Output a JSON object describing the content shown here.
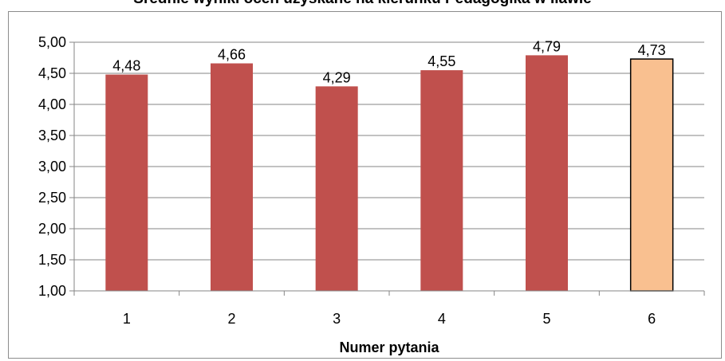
{
  "chart_data": {
    "type": "bar",
    "title": "Średnie wyniki ocen uzyskane na kierunku Pedagogika w Iławie",
    "xlabel": "Numer pytania",
    "ylabel": "",
    "categories": [
      "1",
      "2",
      "3",
      "4",
      "5",
      "6"
    ],
    "values": [
      4.48,
      4.66,
      4.29,
      4.55,
      4.79,
      4.73
    ],
    "data_labels": [
      "4,48",
      "4,66",
      "4,29",
      "4,55",
      "4,79",
      "4,73"
    ],
    "ylim": [
      1.0,
      5.0
    ],
    "yticks": [
      1.0,
      1.5,
      2.0,
      2.5,
      3.0,
      3.5,
      4.0,
      4.5,
      5.0
    ],
    "ytick_labels": [
      "1,00",
      "1,50",
      "2,00",
      "2,50",
      "3,00",
      "3,50",
      "4,00",
      "4,50",
      "5,00"
    ],
    "grid": true,
    "legend": "none",
    "colors": {
      "bar": "#c0504d",
      "highlight_bar": "#f9c090",
      "highlight_border": "#000000",
      "grid": "#868686"
    },
    "highlight_index": 5
  }
}
